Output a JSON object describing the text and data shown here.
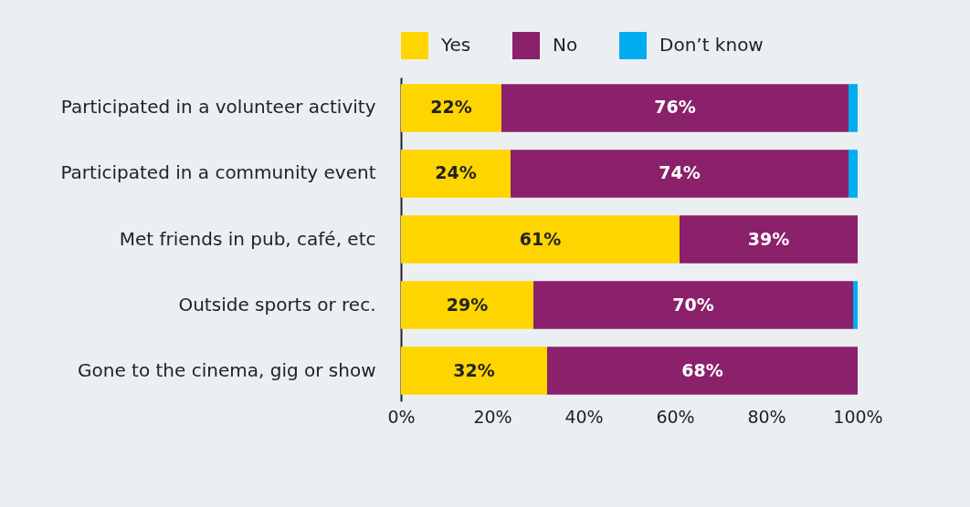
{
  "chart_data": {
    "type": "bar",
    "orientation": "horizontal",
    "stacked": true,
    "categories": [
      "Participated in a volunteer activity",
      "Participated in a community event",
      "Met friends in pub, café, etc",
      "Outside sports or rec.",
      "Gone to the cinema, gig or show"
    ],
    "series": [
      {
        "name": "Yes",
        "color": "#ffd500",
        "values": [
          22,
          24,
          61,
          29,
          32
        ],
        "value_labels": [
          "22%",
          "24%",
          "61%",
          "29%",
          "32%"
        ]
      },
      {
        "name": "No",
        "color": "#8b206b",
        "values": [
          76,
          74,
          39,
          70,
          68
        ],
        "value_labels": [
          "76%",
          "74%",
          "39%",
          "70%",
          "68%"
        ]
      },
      {
        "name": "Don’t know",
        "color": "#00aeef",
        "values": [
          2,
          2,
          0,
          1,
          0
        ],
        "value_labels": [
          null,
          null,
          null,
          null,
          null
        ]
      }
    ],
    "xlim": [
      0,
      100
    ],
    "xticks": [
      {
        "value": 0,
        "label": "0%"
      },
      {
        "value": 20,
        "label": "20%"
      },
      {
        "value": 40,
        "label": "40%"
      },
      {
        "value": 60,
        "label": "60%"
      },
      {
        "value": 80,
        "label": "80%"
      },
      {
        "value": 100,
        "label": "100%"
      }
    ],
    "grid": false,
    "legend": "top"
  }
}
